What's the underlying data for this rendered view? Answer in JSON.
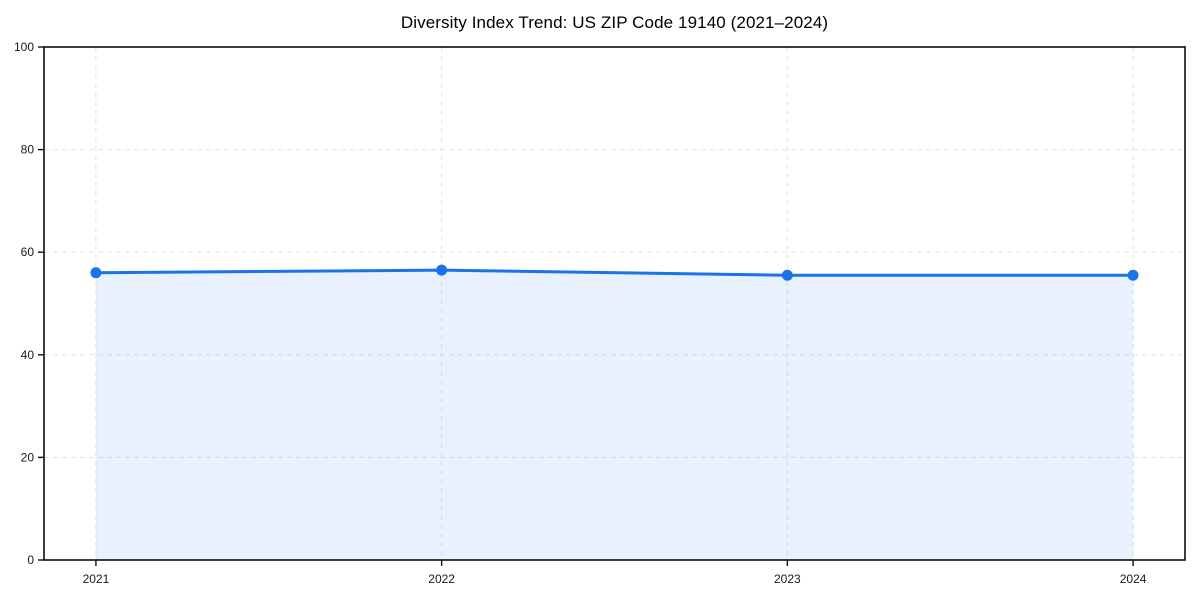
{
  "chart_data": {
    "type": "area",
    "title": "Diversity Index Trend: US ZIP Code 19140 (2021–2024)",
    "xlabel": "",
    "ylabel": "",
    "categories": [
      "2021",
      "2022",
      "2023",
      "2024"
    ],
    "series": [
      {
        "name": "Diversity Index",
        "values": [
          56.0,
          56.5,
          55.5,
          55.5
        ]
      }
    ],
    "ylim": [
      0,
      100
    ],
    "yticks": [
      0,
      20,
      40,
      60,
      80,
      100
    ],
    "grid": true,
    "grid_style": "dashed",
    "legend_position": "none",
    "colors": {
      "line": "#1a73e8",
      "marker": "#1a73e8",
      "fill_rgba": "rgba(26,115,232,0.10)",
      "grid": "#e2e2e2",
      "spine": "#0d0d0d",
      "tick_text": "#1a1a1a",
      "title_text": "#000000"
    }
  }
}
